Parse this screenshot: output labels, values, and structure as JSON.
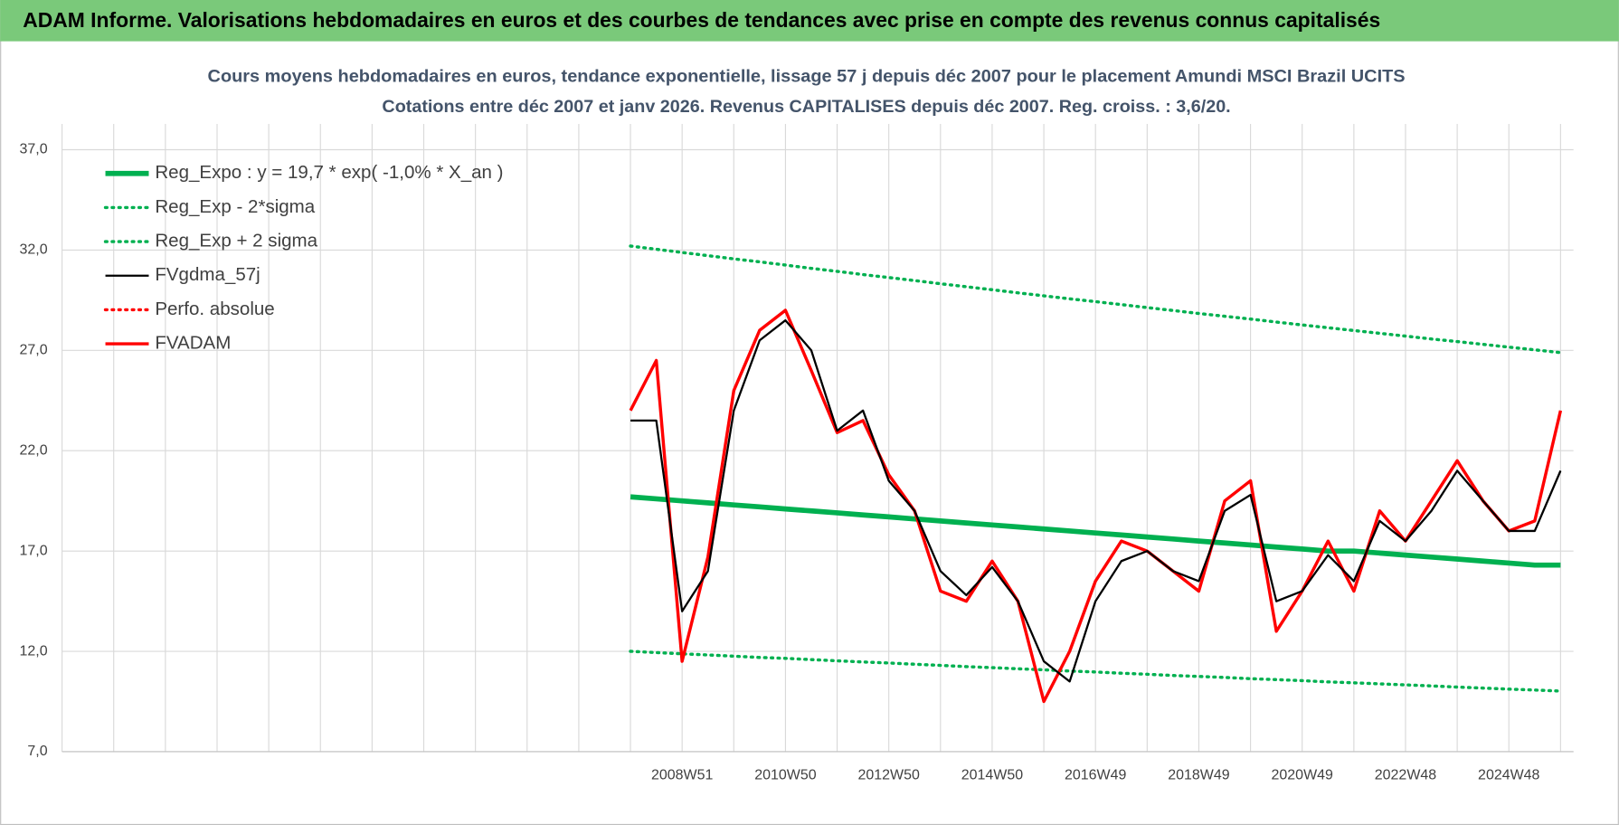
{
  "header": {
    "title": "ADAM Informe. Valorisations hebdomadaires en euros et des courbes de tendances avec prise en compte des revenus connus capitalisés"
  },
  "chart_data": {
    "type": "line",
    "title": "Cours moyens hebdomadaires en euros, tendance exponentielle, lissage 57 j depuis déc 2007 pour le placement Amundi MSCI Brazil UCITS",
    "subtitle": "Cotations entre déc 2007 et janv 2026. Revenus CAPITALISES depuis déc 2007. Reg. croiss. : 3,6/20.",
    "categories": [
      null,
      null,
      null,
      null,
      null,
      null,
      null,
      null,
      null,
      null,
      null,
      null,
      null,
      null,
      null,
      null,
      null,
      null,
      null,
      null,
      null,
      null,
      null,
      null,
      "2008W51",
      null,
      null,
      null,
      "2010W50",
      null,
      null,
      null,
      "2012W50",
      null,
      null,
      null,
      "2014W50",
      null,
      null,
      null,
      "2016W49",
      null,
      null,
      null,
      "2018W49",
      null,
      null,
      null,
      "2020W49",
      null,
      null,
      null,
      "2022W48",
      null,
      null,
      null,
      "2024W48",
      null,
      null
    ],
    "ylim": [
      7,
      37
    ],
    "yticks": [
      {
        "value": 7,
        "label": "7,0"
      },
      {
        "value": 12,
        "label": "12,0"
      },
      {
        "value": 17,
        "label": "17,0"
      },
      {
        "value": 22,
        "label": "22,0"
      },
      {
        "value": 27,
        "label": "27,0"
      },
      {
        "value": 32,
        "label": "32,0"
      },
      {
        "value": 37,
        "label": "37,0"
      }
    ],
    "grid": true,
    "legend": "top-left",
    "series": [
      {
        "name": "Reg_Expo : y = 19,7 * exp( -1,0% *  X_an )",
        "color": "#00b050",
        "style": "solid",
        "values": [
          null,
          null,
          null,
          null,
          null,
          null,
          null,
          null,
          null,
          null,
          null,
          null,
          null,
          null,
          null,
          null,
          null,
          null,
          null,
          null,
          null,
          null,
          19.7,
          19.6,
          19.5,
          19.4,
          19.3,
          19.2,
          19.1,
          19.0,
          18.9,
          18.8,
          18.7,
          18.6,
          18.5,
          18.4,
          18.3,
          18.2,
          18.1,
          18.0,
          17.9,
          17.8,
          17.7,
          17.6,
          17.5,
          17.4,
          17.3,
          17.2,
          17.1,
          17.0,
          17.0,
          16.9,
          16.8,
          16.7,
          16.6,
          16.5,
          16.4,
          16.3,
          16.3
        ]
      },
      {
        "name": "Reg_Exp - 2*sigma",
        "color": "#00b050",
        "style": "dotted",
        "values": [
          null,
          null,
          null,
          null,
          null,
          null,
          null,
          null,
          null,
          null,
          null,
          null,
          null,
          null,
          null,
          null,
          null,
          null,
          null,
          null,
          null,
          null,
          12.0,
          11.94,
          11.88,
          11.82,
          11.76,
          11.7,
          11.65,
          11.59,
          11.53,
          11.47,
          11.42,
          11.36,
          11.3,
          11.24,
          11.19,
          11.13,
          11.08,
          11.02,
          10.97,
          10.91,
          10.86,
          10.8,
          10.75,
          10.7,
          10.64,
          10.59,
          10.54,
          10.48,
          10.43,
          10.38,
          10.33,
          10.28,
          10.22,
          10.17,
          10.12,
          10.07,
          10.02
        ]
      },
      {
        "name": "Reg_Exp + 2 sigma",
        "color": "#00b050",
        "style": "dotted",
        "values": [
          null,
          null,
          null,
          null,
          null,
          null,
          null,
          null,
          null,
          null,
          null,
          null,
          null,
          null,
          null,
          null,
          null,
          null,
          null,
          null,
          null,
          null,
          32.2,
          32.04,
          31.88,
          31.72,
          31.56,
          31.41,
          31.25,
          31.09,
          30.94,
          30.78,
          30.63,
          30.48,
          30.32,
          30.17,
          30.02,
          29.87,
          29.72,
          29.57,
          29.43,
          29.28,
          29.13,
          28.99,
          28.84,
          28.7,
          28.56,
          28.41,
          28.27,
          28.13,
          27.99,
          27.85,
          27.71,
          27.57,
          27.44,
          27.3,
          27.16,
          27.03,
          26.89
        ]
      },
      {
        "name": "FVgdma_57j",
        "color": "#000000",
        "style": "solid",
        "values": [
          null,
          null,
          null,
          null,
          null,
          null,
          null,
          null,
          null,
          null,
          null,
          null,
          null,
          null,
          null,
          null,
          null,
          null,
          null,
          null,
          null,
          null,
          23.5,
          23.5,
          14.0,
          16.0,
          24.0,
          27.5,
          28.5,
          27.0,
          23.0,
          24.0,
          20.5,
          19.0,
          16.0,
          14.8,
          16.2,
          14.5,
          11.5,
          10.5,
          14.5,
          16.5,
          17.0,
          16.0,
          15.5,
          19.0,
          19.8,
          14.5,
          15.0,
          16.8,
          15.5,
          18.5,
          17.5,
          19.0,
          21.0,
          19.5,
          18.0,
          18.0,
          21.0
        ]
      },
      {
        "name": "Perfo. absolue",
        "color": "#ff0000",
        "style": "dotted",
        "values": [
          null,
          null,
          null,
          null,
          null,
          null,
          null,
          null,
          null,
          null,
          null,
          null,
          null,
          null,
          null,
          null,
          null,
          null,
          null,
          null,
          null,
          null,
          null,
          null,
          null,
          null,
          null,
          null,
          null,
          null,
          null,
          null,
          null,
          null,
          null,
          null,
          null,
          null,
          null,
          null,
          null,
          null,
          null,
          null,
          null,
          null,
          null,
          null,
          null,
          null,
          null,
          null,
          null,
          null,
          null,
          null,
          null,
          null,
          null
        ]
      },
      {
        "name": "FVADAM",
        "color": "#ff0000",
        "style": "solid",
        "values": [
          null,
          null,
          null,
          null,
          null,
          null,
          null,
          null,
          null,
          null,
          null,
          null,
          null,
          null,
          null,
          null,
          null,
          null,
          null,
          null,
          null,
          null,
          24.0,
          26.5,
          11.5,
          16.7,
          25.0,
          28.0,
          29.0,
          26.0,
          22.9,
          23.5,
          20.8,
          19.0,
          15.0,
          14.5,
          16.5,
          14.5,
          9.5,
          12.0,
          15.5,
          17.5,
          17.0,
          16.0,
          15.0,
          19.5,
          20.5,
          13.0,
          15.0,
          17.5,
          15.0,
          19.0,
          17.5,
          19.5,
          21.5,
          19.5,
          18.0,
          18.5,
          24.0
        ]
      }
    ]
  }
}
